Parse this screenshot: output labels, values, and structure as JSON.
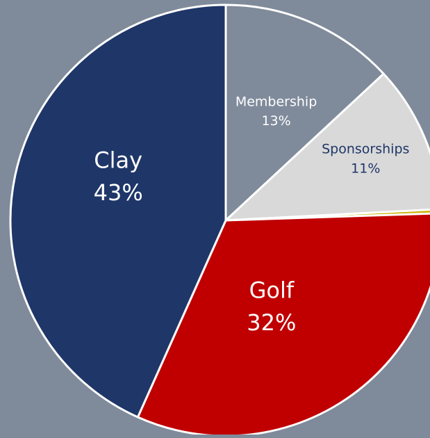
{
  "chart_data": {
    "type": "pie",
    "slices": [
      {
        "label": "Membership",
        "value": 13,
        "value_label": "13%",
        "color": "#7f8b9b",
        "label_color": "#ffffff"
      },
      {
        "label": "Sponsorships",
        "value": 11,
        "value_label": "11%",
        "color": "#d9d9d9",
        "label_color": "#1f3668"
      },
      {
        "label": "",
        "value": 0.3,
        "value_label": "",
        "color": "#c9b300",
        "label_color": "#000000"
      },
      {
        "label": "Golf",
        "value": 32,
        "value_label": "32%",
        "color": "#c00000",
        "label_color": "#ffffff"
      },
      {
        "label": "Clay",
        "value": 43,
        "value_label": "43%",
        "color": "#1f3668",
        "label_color": "#ffffff"
      }
    ],
    "start_angle": "12 o'clock",
    "direction": "clockwise",
    "slice_border_color": "#ffffff",
    "legend": "none"
  }
}
